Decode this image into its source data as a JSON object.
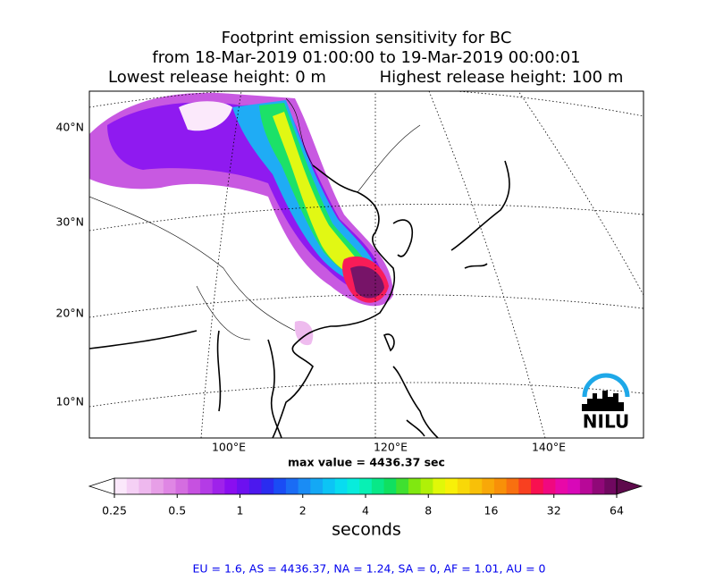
{
  "title": {
    "line1": "Footprint emission sensitivity for BC",
    "line2": "from 18-Mar-2019 01:00:00 to 19-Mar-2019 00:00:01",
    "line3_left": "Lowest release height: 0 m",
    "line3_right": "Highest release height: 100 m"
  },
  "map": {
    "lat_labels": [
      "40°N",
      "30°N",
      "20°N",
      "10°N"
    ],
    "lon_labels": [
      "100°E",
      "120°E",
      "140°E"
    ],
    "max_value_text": "max value = 4436.37 sec",
    "logo": "NILU"
  },
  "colorbar": {
    "ticks": [
      0.25,
      0.5,
      1,
      2,
      4,
      8,
      16,
      32,
      64
    ],
    "log_scale": true,
    "label": "seconds",
    "under_color": "#ffffff",
    "over_color": "#5e0a4c",
    "colors": [
      "#fbe8fb",
      "#f5d0f5",
      "#eeb8ee",
      "#e79fe7",
      "#df86e4",
      "#d46de0",
      "#c651e0",
      "#b43be6",
      "#9f22ea",
      "#8a0ef0",
      "#6d10f0",
      "#4c18ee",
      "#2a2cf0",
      "#1a4cf5",
      "#1a6cf5",
      "#1a8cf5",
      "#14a8f5",
      "#0cc4f5",
      "#08dcf0",
      "#08ecdc",
      "#08f0b4",
      "#08e888",
      "#10e060",
      "#40e030",
      "#80e810",
      "#b0f008",
      "#e0f808",
      "#f8f008",
      "#f8d808",
      "#f8c008",
      "#f8a808",
      "#f89008",
      "#f87010",
      "#f84020",
      "#f81050",
      "#f00880",
      "#e808a8",
      "#d808b8",
      "#b80898",
      "#900878",
      "#700860"
    ]
  },
  "footer": "EU = 1.6,  AS = 4436.37,  NA = 1.24,  SA = 0,  AF = 1.01,  AU = 0"
}
